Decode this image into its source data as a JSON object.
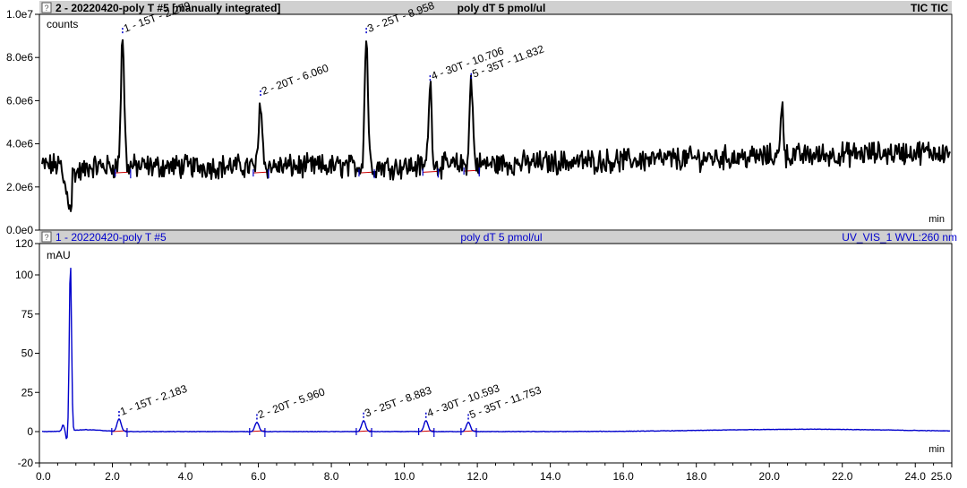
{
  "panels": [
    {
      "id": "tic",
      "header_left": "2 - 20220420-poly T #5 [manually integrated]",
      "header_center": "poly dT 5 pmol/ul",
      "header_right": "TIC TIC",
      "unit": "counts",
      "x_unit": "min"
    },
    {
      "id": "uv",
      "header_left": "1 - 20220420-poly T #5",
      "header_center": "poly dT 5 pmol/ul",
      "header_right": "UV_VIS_1 WVL:260 nm",
      "unit": "mAU",
      "x_unit": "min"
    }
  ],
  "colors": {
    "tic_trace": "#000000",
    "uv_trace": "#0000cc",
    "header_bg": "#d0d0d0",
    "header_tic_text": "#000000",
    "header_uv_text": "#0000cc",
    "baseline": "#cc0000",
    "peak_marker": "#0000cc",
    "axis": "#000000"
  },
  "chart_data": [
    {
      "type": "line",
      "title": "poly dT 5 pmol/ul",
      "detector": "TIC TIC",
      "ylabel": "counts",
      "xlabel": "min",
      "xlim": [
        0,
        25
      ],
      "ylim": [
        0,
        10000000
      ],
      "y_ticks": [
        "0.0e0",
        "2.0e6",
        "4.0e6",
        "6.0e6",
        "8.0e6",
        "1.0e7"
      ],
      "y_tick_values": [
        0,
        2000000,
        4000000,
        6000000,
        8000000,
        10000000
      ],
      "baseline_level": 3000000,
      "series": [
        {
          "peaks": [
            {
              "label": "1 - 15T - 2.279",
              "rt": 2.279,
              "height": 9000000
            },
            {
              "label": "2 - 20T - 6.060",
              "rt": 6.06,
              "height": 6100000
            },
            {
              "label": "3 - 25T - 8.958",
              "rt": 8.958,
              "height": 9000000
            },
            {
              "label": "4 - 30T - 10.706",
              "rt": 10.706,
              "height": 6800000
            },
            {
              "label": "5 - 35T - 11.832",
              "rt": 11.832,
              "height": 6900000
            }
          ],
          "other_features": [
            {
              "rt": 0.85,
              "height": 1100000
            },
            {
              "rt": 20.35,
              "height": 6000000
            }
          ]
        }
      ]
    },
    {
      "type": "line",
      "title": "poly dT 5 pmol/ul",
      "detector": "UV_VIS_1 WVL:260 nm",
      "ylabel": "mAU",
      "xlabel": "min",
      "xlim": [
        0,
        25
      ],
      "ylim": [
        -20,
        120
      ],
      "y_ticks": [
        "-20",
        "0",
        "25",
        "50",
        "75",
        "100",
        "120"
      ],
      "y_tick_values": [
        -20,
        0,
        25,
        50,
        75,
        100,
        120
      ],
      "x_ticks": [
        "0.0",
        "2.0",
        "4.0",
        "6.0",
        "8.0",
        "10.0",
        "12.0",
        "14.0",
        "16.0",
        "18.0",
        "20.0",
        "22.0",
        "24.0",
        "25.0"
      ],
      "x_tick_values": [
        0,
        2,
        4,
        6,
        8,
        10,
        12,
        14,
        16,
        18,
        20,
        22,
        24,
        25
      ],
      "series": [
        {
          "peaks": [
            {
              "label": "1 - 15T - 2.183",
              "rt": 2.183,
              "height": 8
            },
            {
              "label": "2 - 20T - 5.960",
              "rt": 5.96,
              "height": 6
            },
            {
              "label": "3 - 25T - 8.883",
              "rt": 8.883,
              "height": 7
            },
            {
              "label": "4 - 30T - 10.593",
              "rt": 10.593,
              "height": 7
            },
            {
              "label": "5 - 35T - 11.753",
              "rt": 11.753,
              "height": 6
            }
          ],
          "other_features": [
            {
              "rt": 0.85,
              "height": 108
            },
            {
              "rt": 0.65,
              "height": 4
            },
            {
              "rt": 0.75,
              "height": -6
            }
          ]
        }
      ]
    }
  ]
}
